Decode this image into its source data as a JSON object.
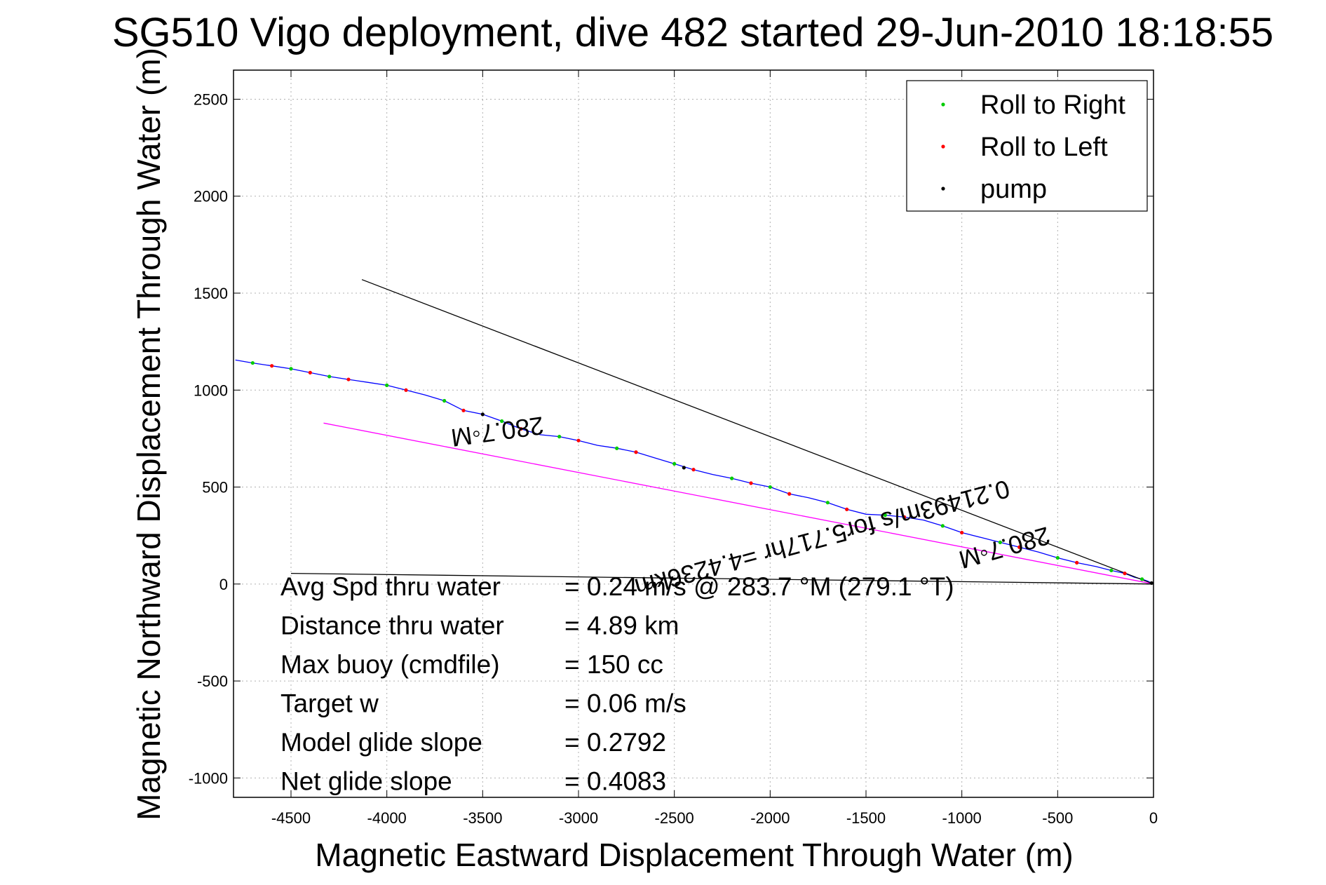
{
  "chart_data": {
    "type": "line",
    "title": "SG510 Vigo deployment, dive 482 started 29-Jun-2010 18:18:55",
    "xlabel": "Magnetic Eastward Displacement Through Water (m)",
    "ylabel": "Magnetic Northward Displacement Through Water (m)",
    "xlim": [
      -4800,
      0
    ],
    "ylim": [
      -1100,
      2650
    ],
    "xticks": [
      "-4500",
      "-4000",
      "-3500",
      "-3000",
      "-2500",
      "-2000",
      "-1500",
      "-1000",
      "-500",
      "0"
    ],
    "yticks": [
      "-1000",
      "-500",
      "0",
      "500",
      "1000",
      "1500",
      "2000",
      "2500"
    ],
    "grid": true,
    "legend_position": "top-right",
    "legend": [
      {
        "name": "Roll to Right",
        "color": "#00cc00"
      },
      {
        "name": "Roll to Left",
        "color": "#ff0000"
      },
      {
        "name": "pump",
        "color": "#000000"
      }
    ],
    "series": [
      {
        "color": "#0000ff",
        "x": [
          0,
          -30,
          -60,
          -100,
          -150,
          -220,
          -300,
          -400,
          -500,
          -600,
          -700,
          -800,
          -900,
          -1000,
          -1100,
          -1200,
          -1300,
          -1400,
          -1500,
          -1600,
          -1700,
          -1800,
          -1900,
          -2000,
          -2100,
          -2200,
          -2300,
          -2400,
          -2500,
          -2600,
          -2700,
          -2800,
          -2900,
          -3000,
          -3100,
          -3200,
          -3300,
          -3400,
          -3500,
          -3600,
          -3700,
          -3800,
          -3900,
          -4000,
          -4100,
          -4200,
          -4300,
          -4400,
          -4500,
          -4600,
          -4700,
          -4790
        ],
        "y": [
          0,
          15,
          25,
          35,
          55,
          70,
          90,
          110,
          135,
          165,
          190,
          215,
          240,
          265,
          300,
          330,
          345,
          355,
          360,
          385,
          420,
          445,
          465,
          500,
          520,
          545,
          565,
          590,
          620,
          650,
          680,
          700,
          715,
          740,
          760,
          770,
          800,
          840,
          875,
          895,
          945,
          975,
          1000,
          1025,
          1040,
          1055,
          1070,
          1090,
          1110,
          1125,
          1140,
          1155
        ]
      },
      {
        "color": "#ff00ff",
        "x": [
          -4330,
          0
        ],
        "y": [
          830,
          0
        ]
      },
      {
        "color": "#000000",
        "x": [
          -4130,
          0
        ],
        "y": [
          1570,
          0
        ]
      },
      {
        "color": "#000000",
        "x": [
          -4500,
          0
        ],
        "y": [
          55,
          0
        ]
      }
    ],
    "roll_right_points": {
      "x": [
        -60,
        -220,
        -500,
        -800,
        -1100,
        -1400,
        -1700,
        -2000,
        -2200,
        -2500,
        -2800,
        -3100,
        -3400,
        -3700,
        -4000,
        -4300,
        -4500,
        -4700
      ],
      "y": [
        25,
        70,
        135,
        215,
        300,
        355,
        420,
        500,
        545,
        620,
        700,
        760,
        840,
        945,
        1025,
        1070,
        1110,
        1140
      ]
    },
    "roll_left_points": {
      "x": [
        -150,
        -400,
        -700,
        -1000,
        -1300,
        -1600,
        -1900,
        -2100,
        -2400,
        -2700,
        -3000,
        -3300,
        -3600,
        -3900,
        -4200,
        -4400,
        -4600
      ],
      "y": [
        55,
        110,
        190,
        265,
        345,
        385,
        465,
        520,
        590,
        680,
        740,
        800,
        895,
        1000,
        1055,
        1090,
        1125
      ]
    },
    "pump_points": {
      "x": [
        -10,
        -2450,
        -3500
      ],
      "y": [
        5,
        600,
        875
      ]
    },
    "annotations": [
      {
        "text": "280.7◦M",
        "x": -3430,
        "y": 830,
        "rotation": 172
      },
      {
        "text": "0.21493m/s for5.717hr =4.4236km",
        "x": -1740,
        "y": 280,
        "rotation": 165
      },
      {
        "text": "280.7◦M",
        "x": -790,
        "y": 230,
        "rotation": 164
      }
    ],
    "stats": [
      {
        "label": "Avg Spd thru water",
        "value": "=  0.24 m/s @ 283.7 °M (279.1 °T)"
      },
      {
        "label": "Distance thru water",
        "value": "=  4.89 km"
      },
      {
        "label": "Max buoy (cmdfile)",
        "value": "= 150 cc"
      },
      {
        "label": "Target w",
        "value": "= 0.06 m/s"
      },
      {
        "label": "Model glide slope",
        "value": "= 0.2792"
      },
      {
        "label": "Net glide slope",
        "value": "= 0.4083"
      }
    ]
  }
}
